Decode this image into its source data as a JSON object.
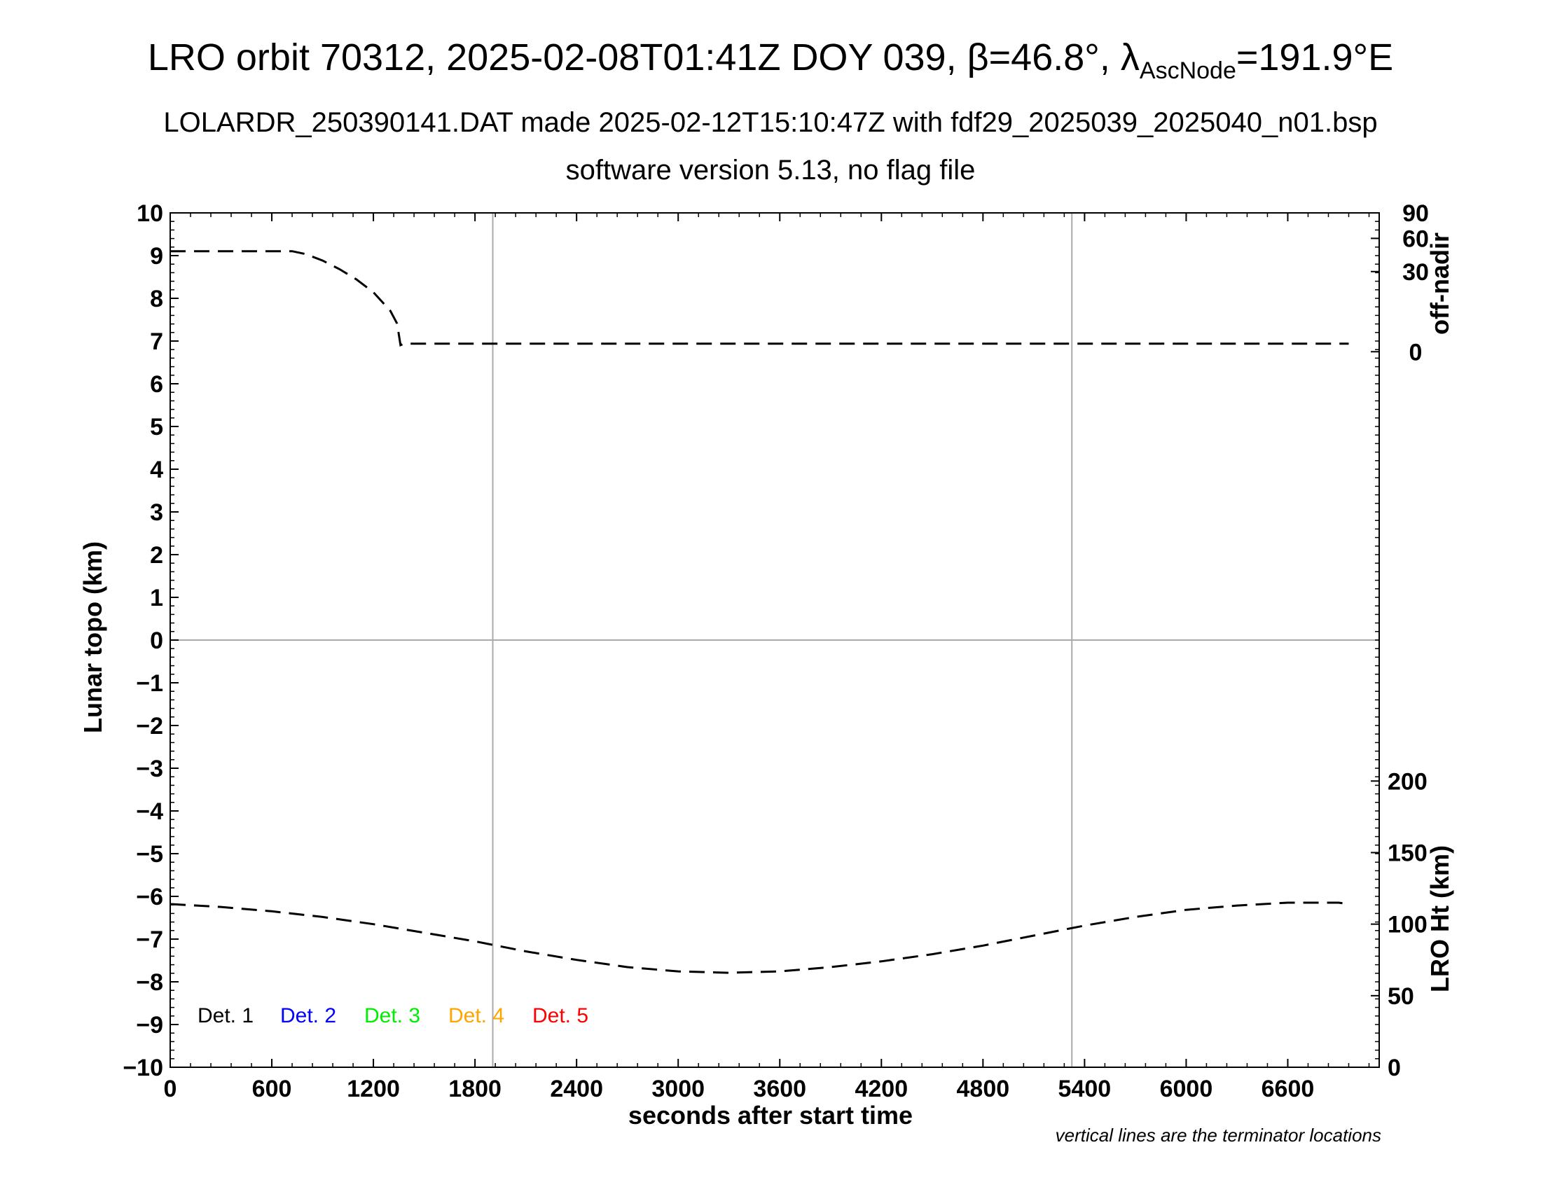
{
  "title": {
    "main_prefix": "LRO orbit 70312, 2025-02-08T01:41Z DOY 039, β=46.8°, λ",
    "main_sub": "AscNode",
    "main_suffix": "=191.9°E",
    "line2": "LOLARDR_250390141.DAT made 2025-02-12T15:10:47Z with fdf29_2025039_2025040_n01.bsp",
    "line3": "software version 5.13, no flag file"
  },
  "note": "vertical lines are the terminator locations",
  "colors": {
    "axes": "#000000",
    "grid": "#aaaaaa",
    "series": "#000000"
  },
  "chart_data": {
    "type": "line",
    "xlabel": "seconds after start time",
    "ylabel": "Lunar topo (km)",
    "xlim": [
      0,
      7140
    ],
    "ylim": [
      -10,
      10
    ],
    "x_ticks": [
      {
        "value": 0,
        "label": "0"
      },
      {
        "value": 600,
        "label": "600"
      },
      {
        "value": 1200,
        "label": "1200"
      },
      {
        "value": 1800,
        "label": "1800"
      },
      {
        "value": 2400,
        "label": "2400"
      },
      {
        "value": 3000,
        "label": "3000"
      },
      {
        "value": 3600,
        "label": "3600"
      },
      {
        "value": 4200,
        "label": "4200"
      },
      {
        "value": 4800,
        "label": "4800"
      },
      {
        "value": 5400,
        "label": "5400"
      },
      {
        "value": 6000,
        "label": "6000"
      },
      {
        "value": 6600,
        "label": "6600"
      }
    ],
    "y_ticks": [
      {
        "value": 10,
        "label": "10"
      },
      {
        "value": 9,
        "label": "9"
      },
      {
        "value": 8,
        "label": "8"
      },
      {
        "value": 7,
        "label": "7"
      },
      {
        "value": 6,
        "label": "6"
      },
      {
        "value": 5,
        "label": "5"
      },
      {
        "value": 4,
        "label": "4"
      },
      {
        "value": 3,
        "label": "3"
      },
      {
        "value": 2,
        "label": "2"
      },
      {
        "value": 1,
        "label": "1"
      },
      {
        "value": 0,
        "label": "0"
      },
      {
        "value": -1,
        "label": "−1"
      },
      {
        "value": -2,
        "label": "−2"
      },
      {
        "value": -3,
        "label": "−3"
      },
      {
        "value": -4,
        "label": "−4"
      },
      {
        "value": -5,
        "label": "−5"
      },
      {
        "value": -6,
        "label": "−6"
      },
      {
        "value": -7,
        "label": "−7"
      },
      {
        "value": -8,
        "label": "−8"
      },
      {
        "value": -9,
        "label": "−9"
      },
      {
        "value": -10,
        "label": "−10"
      }
    ],
    "grid": "zero line and terminator lines only",
    "terminator_lines_x": [
      1905,
      5325
    ],
    "right_axes": [
      {
        "label": "off-nadir",
        "scale": "sqrt",
        "lim": [
          0,
          90
        ],
        "ticks": [
          {
            "value": 90,
            "label": "90"
          },
          {
            "value": 60,
            "label": "60"
          },
          {
            "value": 30,
            "label": "30"
          },
          {
            "value": 0,
            "label": "0"
          }
        ]
      },
      {
        "label": "LRO Ht (km)",
        "scale": "linear",
        "lim": [
          0,
          200
        ],
        "ticks": [
          {
            "value": 200,
            "label": "200"
          },
          {
            "value": 150,
            "label": "150"
          },
          {
            "value": 100,
            "label": "100"
          },
          {
            "value": 50,
            "label": "50"
          },
          {
            "value": 0,
            "label": "0"
          }
        ]
      }
    ],
    "legend": {
      "position": "bottom-left",
      "entries": [
        {
          "label": "Det. 1",
          "color": "#000000"
        },
        {
          "label": "Det. 2",
          "color": "#0000ff"
        },
        {
          "label": "Det. 3",
          "color": "#00ee00"
        },
        {
          "label": "Det. 4",
          "color": "#ffa500"
        },
        {
          "label": "Det. 5",
          "color": "#ff0000"
        }
      ]
    },
    "series": [
      {
        "axis": "off-nadir",
        "style": "dashed",
        "x": [
          0,
          300,
          600,
          720,
          800,
          900,
          1000,
          1100,
          1200,
          1300,
          1340,
          1360,
          1380,
          2400,
          3600,
          4800,
          6000,
          6960
        ],
        "values": [
          47.2,
          47.2,
          47.2,
          47.2,
          44.5,
          38.8,
          31.8,
          24.4,
          16.5,
          7.8,
          3.7,
          0.2,
          0.3,
          0.3,
          0.3,
          0.3,
          0.3,
          0.3
        ]
      },
      {
        "axis": "LRO Ht (km)",
        "style": "dashed",
        "x": [
          0,
          300,
          600,
          900,
          1200,
          1500,
          1800,
          2100,
          2400,
          2700,
          3000,
          3300,
          3600,
          3900,
          4200,
          4500,
          4800,
          5100,
          5400,
          5700,
          6000,
          6300,
          6600,
          6900,
          6960
        ],
        "values": [
          114,
          112,
          109,
          105,
          100,
          94,
          88,
          81,
          75,
          70,
          67,
          66,
          67,
          70,
          74,
          79,
          85,
          92,
          99,
          105,
          110,
          113,
          115,
          115,
          114
        ]
      }
    ]
  }
}
